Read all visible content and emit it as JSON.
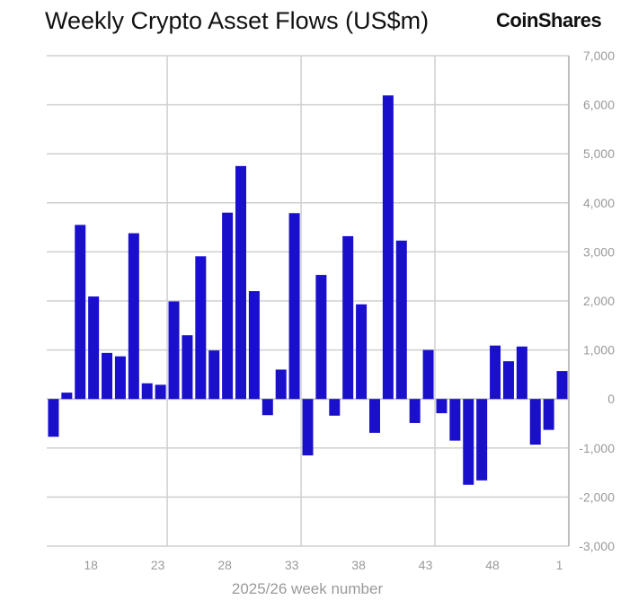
{
  "chart_data": {
    "type": "bar",
    "title": "Weekly Crypto Asset Flows (US$m)",
    "xlabel": "2025/26 week number",
    "ylabel": "",
    "ylim": [
      -3000,
      7000
    ],
    "yticks": [
      -3000,
      -2000,
      -1000,
      0,
      1000,
      2000,
      3000,
      4000,
      5000,
      6000,
      7000
    ],
    "ytick_labels": [
      "-3,000",
      "-2,000",
      "-1,000",
      "0",
      "1,000",
      "2,000",
      "3,000",
      "4,000",
      "5,000",
      "6,000",
      "7,000"
    ],
    "xtick_labels": [
      "18",
      "23",
      "28",
      "33",
      "38",
      "43",
      "48",
      "1"
    ],
    "y_axis_side": "right",
    "grid": true,
    "bar_color": "#1a10cc",
    "categories": [
      "15",
      "16",
      "17",
      "18",
      "19",
      "20",
      "21",
      "22",
      "23",
      "24",
      "25",
      "26",
      "27",
      "28",
      "29",
      "30",
      "31",
      "32",
      "33",
      "34",
      "35",
      "36",
      "37",
      "38",
      "39",
      "40",
      "41",
      "42",
      "43",
      "44",
      "45",
      "46",
      "47",
      "48",
      "49",
      "50",
      "51",
      "52",
      "1"
    ],
    "values": [
      -770,
      130,
      3550,
      2090,
      940,
      870,
      3380,
      320,
      290,
      1990,
      1300,
      2910,
      990,
      3800,
      4750,
      2200,
      -330,
      600,
      3790,
      -1150,
      2530,
      -340,
      3320,
      1930,
      -690,
      6190,
      3230,
      -490,
      1000,
      -290,
      -850,
      -1750,
      -1660,
      1090,
      770,
      1070,
      -930,
      -630,
      570
    ]
  },
  "brand": {
    "logo_text": "CoinShares"
  }
}
